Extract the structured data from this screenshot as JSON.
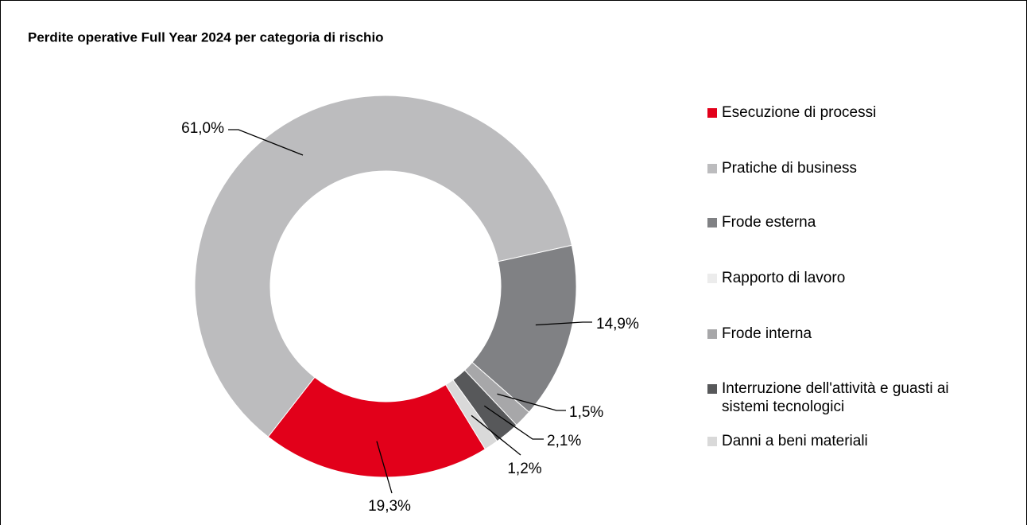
{
  "chart_data": {
    "type": "donut",
    "title": "Perdite operative Full Year 2024 per categoria di rischio",
    "categories": [
      "Esecuzione di processi",
      "Pratiche di business",
      "Frode esterna",
      "Rapporto di lavoro",
      "Frode interna",
      "Interruzione dell'attività e guasti ai sistemi tecnologici",
      "Danni a beni materiali"
    ],
    "values": [
      19.3,
      61.0,
      14.9,
      0,
      1.5,
      2.1,
      1.2
    ],
    "value_labels": [
      "19,3%",
      "61,0%",
      "14,9%",
      null,
      "1,5%",
      "2,1%",
      "1,2%"
    ],
    "colors": [
      "#e2001a",
      "#bcbcbe",
      "#808184",
      "#ececec",
      "#a7a7a9",
      "#57585a",
      "#d9d9d9"
    ],
    "legend": "right"
  }
}
